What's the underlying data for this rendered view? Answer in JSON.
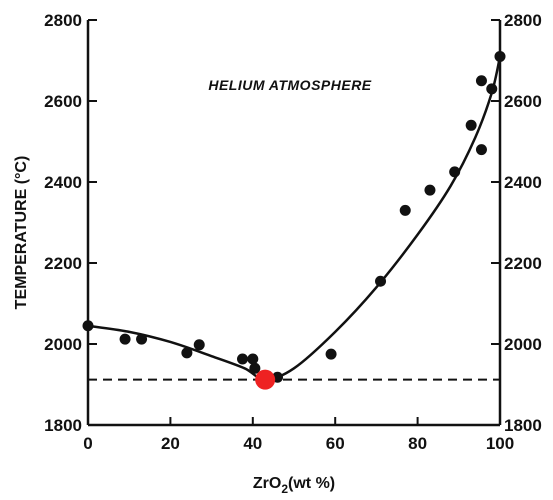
{
  "chart_data": {
    "type": "scatter",
    "title": "",
    "annotation": "HELIUM ATMOSPHERE",
    "xlabel": {
      "base": "ZrO",
      "sub": "2",
      "rest": "(wt %)"
    },
    "ylabel": "TEMPERATURE (°C)",
    "xlim": [
      0,
      100
    ],
    "ylim": [
      1800,
      2800
    ],
    "xticks": [
      0,
      20,
      40,
      60,
      80,
      100
    ],
    "yticks": [
      1800,
      2000,
      2200,
      2400,
      2600,
      2800
    ],
    "xtick_labels": [
      "0",
      "20",
      "40",
      "60",
      "80",
      "100"
    ],
    "ytick_labels_left": [
      "1800",
      "2000",
      "2200",
      "2400",
      "2600",
      "2800"
    ],
    "ytick_labels_right": [
      "1800",
      "2000",
      "2200",
      "2400",
      "2600",
      "2800"
    ],
    "grid": false,
    "points": [
      {
        "x": 0,
        "y": 2045
      },
      {
        "x": 9,
        "y": 2012
      },
      {
        "x": 13,
        "y": 2012
      },
      {
        "x": 24,
        "y": 1978
      },
      {
        "x": 27,
        "y": 1998
      },
      {
        "x": 37.5,
        "y": 1963
      },
      {
        "x": 40,
        "y": 1963
      },
      {
        "x": 40.5,
        "y": 1940
      },
      {
        "x": 46,
        "y": 1918
      },
      {
        "x": 59,
        "y": 1975
      },
      {
        "x": 71,
        "y": 2155
      },
      {
        "x": 77,
        "y": 2330
      },
      {
        "x": 83,
        "y": 2380
      },
      {
        "x": 89,
        "y": 2425
      },
      {
        "x": 93,
        "y": 2540
      },
      {
        "x": 95.5,
        "y": 2480
      },
      {
        "x": 95.5,
        "y": 2650
      },
      {
        "x": 98,
        "y": 2630
      },
      {
        "x": 100,
        "y": 2710
      }
    ],
    "liquidus_curve": [
      {
        "x": 0,
        "y": 2045
      },
      {
        "x": 10,
        "y": 2030
      },
      {
        "x": 20,
        "y": 2005
      },
      {
        "x": 30,
        "y": 1970
      },
      {
        "x": 38,
        "y": 1940
      },
      {
        "x": 43,
        "y": 1912
      },
      {
        "x": 50,
        "y": 1940
      },
      {
        "x": 60,
        "y": 2030
      },
      {
        "x": 70,
        "y": 2140
      },
      {
        "x": 80,
        "y": 2270
      },
      {
        "x": 88,
        "y": 2390
      },
      {
        "x": 94,
        "y": 2510
      },
      {
        "x": 98,
        "y": 2620
      },
      {
        "x": 100,
        "y": 2710
      }
    ],
    "eutectic_line": {
      "y": 1912,
      "x_start": 0,
      "x_end": 100
    },
    "eutectic_point": {
      "x": 43,
      "y": 1912
    },
    "colors": {
      "ink": "#111111",
      "eutectic_marker": "#ee2222",
      "background": "#ffffff"
    }
  }
}
